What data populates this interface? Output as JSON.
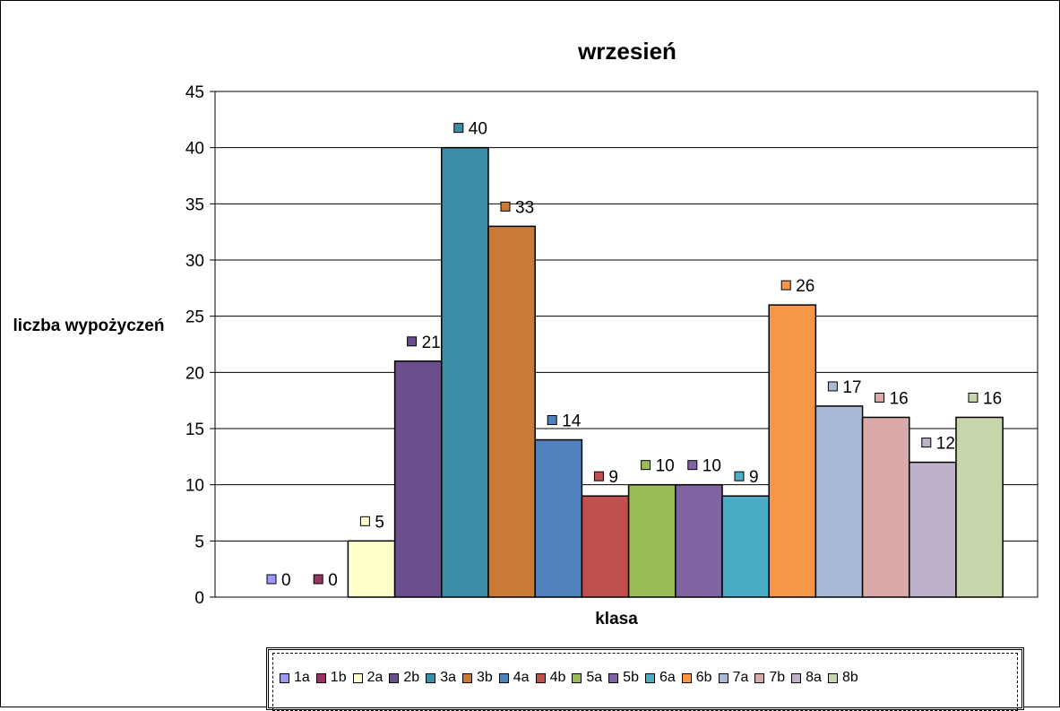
{
  "chart_data": {
    "type": "bar",
    "title": "wrzesień",
    "xlabel": "klasa",
    "ylabel": "liczba wypożyczeń",
    "ylim": [
      0,
      45
    ],
    "yticks": [
      0,
      5,
      10,
      15,
      20,
      25,
      30,
      35,
      40,
      45
    ],
    "grid": true,
    "legend_position": "bottom",
    "categories": [
      "1a",
      "1b",
      "2a",
      "2b",
      "3a",
      "3b",
      "4a",
      "4b",
      "5a",
      "5b",
      "6a",
      "6b",
      "7a",
      "7b",
      "8a",
      "8b"
    ],
    "values": [
      0,
      0,
      5,
      21,
      40,
      33,
      14,
      9,
      10,
      10,
      9,
      26,
      17,
      16,
      12,
      16
    ],
    "colors": [
      "#9999ff",
      "#993366",
      "#ffffcc",
      "#6a4f8c",
      "#3b8ea5",
      "#c97a37",
      "#4f81bd",
      "#c0504d",
      "#9bbb59",
      "#8064a2",
      "#4bacc6",
      "#f79646",
      "#a9b9d8",
      "#dba9a9",
      "#bdb1cc",
      "#c6d6aa"
    ]
  }
}
